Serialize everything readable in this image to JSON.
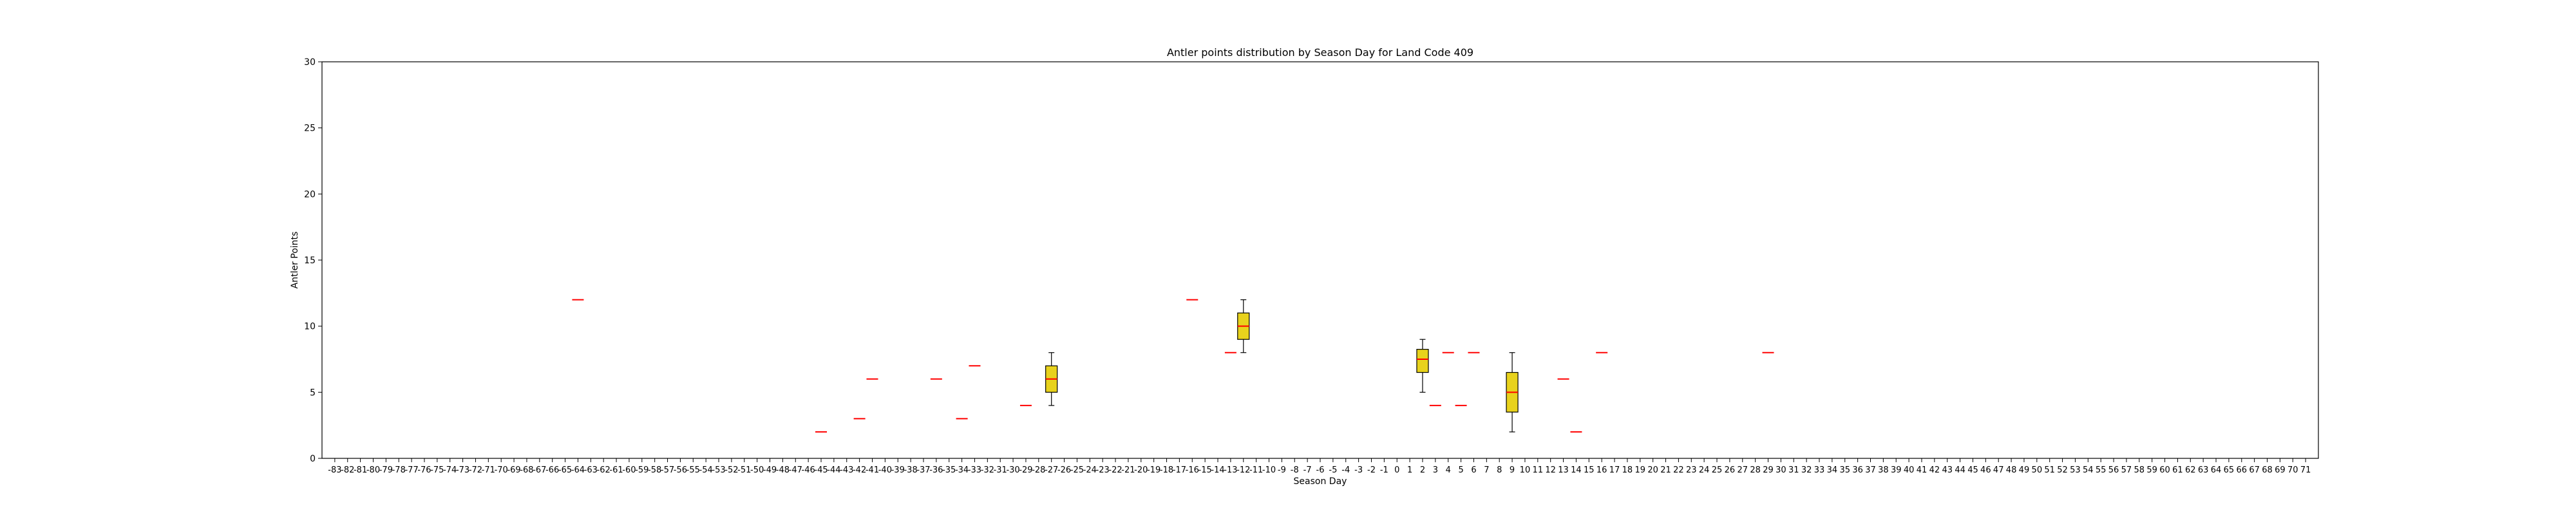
{
  "chart_data": {
    "type": "box",
    "title": "Antler points distribution by Season Day for Land Code 409",
    "xlabel": "Season Day",
    "ylabel": "Antler Points",
    "ylim": [
      0,
      30
    ],
    "yticks": [
      0,
      5,
      10,
      15,
      20,
      25,
      30
    ],
    "grid": false,
    "x_categories": {
      "start": -83,
      "end": 71
    },
    "colors": {
      "box_fill": "#e8d21c",
      "median": "#ff0000",
      "outline": "#000000"
    },
    "boxes": [
      {
        "day": -64,
        "min": 12,
        "q1": 12,
        "median": 12,
        "q3": 12,
        "max": 12
      },
      {
        "day": -45,
        "min": 2,
        "q1": 2,
        "median": 2,
        "q3": 2,
        "max": 2
      },
      {
        "day": -42,
        "min": 3,
        "q1": 3,
        "median": 3,
        "q3": 3,
        "max": 3
      },
      {
        "day": -41,
        "min": 6,
        "q1": 6,
        "median": 6,
        "q3": 6,
        "max": 6
      },
      {
        "day": -36,
        "min": 6,
        "q1": 6,
        "median": 6,
        "q3": 6,
        "max": 6
      },
      {
        "day": -34,
        "min": 3,
        "q1": 3,
        "median": 3,
        "q3": 3,
        "max": 3
      },
      {
        "day": -33,
        "min": 7,
        "q1": 7,
        "median": 7,
        "q3": 7,
        "max": 7
      },
      {
        "day": -29,
        "min": 4,
        "q1": 4,
        "median": 4,
        "q3": 4,
        "max": 4
      },
      {
        "day": -27,
        "min": 4,
        "q1": 5,
        "median": 6,
        "q3": 7,
        "max": 8
      },
      {
        "day": -16,
        "min": 12,
        "q1": 12,
        "median": 12,
        "q3": 12,
        "max": 12
      },
      {
        "day": -13,
        "min": 8,
        "q1": 8,
        "median": 8,
        "q3": 8,
        "max": 8
      },
      {
        "day": -12,
        "min": 8,
        "q1": 9,
        "median": 10,
        "q3": 11,
        "max": 12
      },
      {
        "day": 2,
        "min": 5,
        "q1": 6.5,
        "median": 7.5,
        "q3": 8.25,
        "max": 9
      },
      {
        "day": 3,
        "min": 4,
        "q1": 4,
        "median": 4,
        "q3": 4,
        "max": 4
      },
      {
        "day": 4,
        "min": 8,
        "q1": 8,
        "median": 8,
        "q3": 8,
        "max": 8
      },
      {
        "day": 5,
        "min": 4,
        "q1": 4,
        "median": 4,
        "q3": 4,
        "max": 4
      },
      {
        "day": 6,
        "min": 8,
        "q1": 8,
        "median": 8,
        "q3": 8,
        "max": 8
      },
      {
        "day": 9,
        "min": 2,
        "q1": 3.5,
        "median": 5,
        "q3": 6.5,
        "max": 8
      },
      {
        "day": 13,
        "min": 6,
        "q1": 6,
        "median": 6,
        "q3": 6,
        "max": 6
      },
      {
        "day": 14,
        "min": 2,
        "q1": 2,
        "median": 2,
        "q3": 2,
        "max": 2
      },
      {
        "day": 16,
        "min": 8,
        "q1": 8,
        "median": 8,
        "q3": 8,
        "max": 8
      },
      {
        "day": 29,
        "min": 8,
        "q1": 8,
        "median": 8,
        "q3": 8,
        "max": 8
      }
    ]
  }
}
